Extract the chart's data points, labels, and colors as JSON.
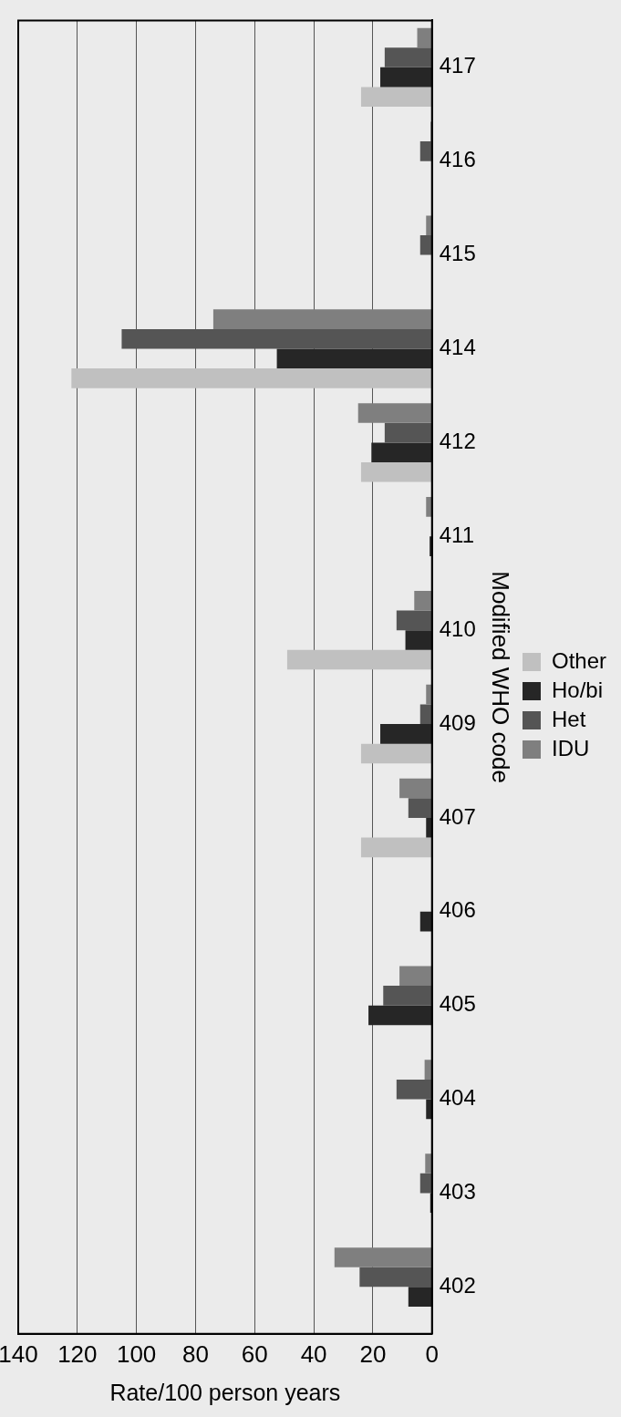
{
  "chart_data": {
    "type": "bar",
    "orientation": "horizontal",
    "xlabel": "Rate/100 person years",
    "ylabel": "Modified WHO code",
    "categories": [
      "417",
      "416",
      "415",
      "414",
      "412",
      "411",
      "410",
      "409",
      "407",
      "406",
      "405",
      "404",
      "403",
      "402"
    ],
    "series": [
      {
        "name": "IDU",
        "color": "#7f7f7f",
        "values": [
          5,
          0.5,
          2,
          74,
          25,
          2,
          6,
          2,
          11,
          0,
          11,
          2.5,
          2.3,
          33
        ]
      },
      {
        "name": "Het",
        "color": "#555555",
        "values": [
          16,
          4,
          4,
          105,
          16,
          0,
          12,
          4,
          8,
          0,
          16.5,
          12,
          4,
          24.5
        ]
      },
      {
        "name": "Ho/bi",
        "color": "#262626",
        "values": [
          17.5,
          0,
          0,
          52.5,
          20.5,
          0.8,
          9,
          17.5,
          2,
          4,
          21.5,
          2,
          0.6,
          8
        ]
      },
      {
        "name": "Other",
        "color": "#c0c0c0",
        "values": [
          24,
          0,
          0,
          122,
          24,
          0,
          49,
          24,
          24,
          0,
          0,
          0,
          0,
          0
        ]
      }
    ],
    "xlim": [
      140,
      0
    ],
    "xticks": [
      0,
      20,
      40,
      60,
      80,
      100,
      120,
      140
    ],
    "grid": "x",
    "legend": "right"
  }
}
